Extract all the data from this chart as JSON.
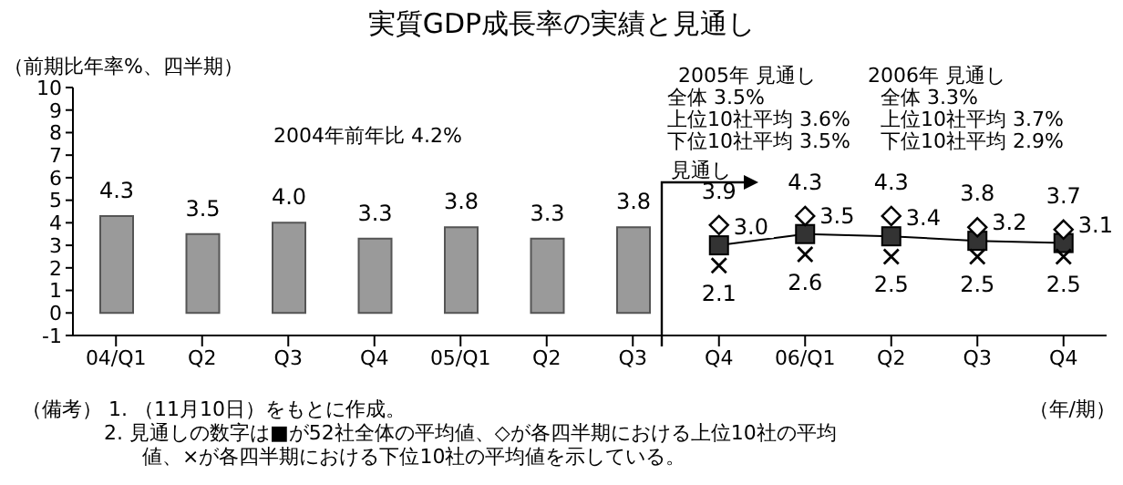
{
  "chart_data": {
    "type": "bar",
    "title": "実質GDP成長率の実績と見通し",
    "ylabel": "（前期比年率%、四半期）",
    "xlabel": "（年/期）",
    "categories": [
      "04/Q1",
      "Q2",
      "Q3",
      "Q4",
      "05/Q1",
      "Q2",
      "Q3",
      "Q4",
      "06/Q1",
      "Q2",
      "Q3",
      "Q4"
    ],
    "series": [
      {
        "color": "#9a9a9a",
        "values": [
          4.3,
          3.5,
          4.0,
          3.3,
          3.8,
          3.3,
          3.8,
          null,
          null,
          null,
          null,
          null
        ],
        "value_labels": [
          "4.3",
          "3.5",
          "4.0",
          "3.3",
          "3.8",
          "3.3",
          "3.8",
          null,
          null,
          null,
          null,
          null
        ]
      },
      {
        "type": "line",
        "color": "#000000",
        "marker": "square",
        "values": [
          null,
          null,
          null,
          null,
          null,
          null,
          null,
          3.0,
          3.5,
          3.4,
          3.2,
          3.1
        ],
        "value_labels": [
          null,
          null,
          null,
          null,
          null,
          null,
          null,
          "3.0",
          "3.5",
          "3.4",
          "3.2",
          "3.1"
        ]
      },
      {
        "type": "scatter",
        "color": "#000000",
        "marker": "diamond",
        "values": [
          null,
          null,
          null,
          null,
          null,
          null,
          null,
          3.9,
          4.3,
          4.3,
          3.8,
          3.7
        ],
        "value_labels": [
          null,
          null,
          null,
          null,
          null,
          null,
          null,
          "3.9",
          "4.3",
          "4.3",
          "3.8",
          "3.7"
        ]
      },
      {
        "type": "scatter",
        "color": "#000000",
        "marker": "cross",
        "values": [
          null,
          null,
          null,
          null,
          null,
          null,
          null,
          2.1,
          2.6,
          2.5,
          2.5,
          2.5
        ],
        "value_labels": [
          null,
          null,
          null,
          null,
          null,
          null,
          null,
          "2.1",
          "2.6",
          "2.5",
          "2.5",
          "2.5"
        ]
      }
    ],
    "ylim": [
      -1,
      10
    ],
    "yticks": [
      -1,
      0,
      1,
      2,
      3,
      4,
      5,
      6,
      7,
      8,
      9,
      10
    ],
    "grid": false,
    "legend": false,
    "annotations": [
      "2004年前年比 4.2%",
      "2005年 見通し",
      "全体 3.5%",
      "上位10社平均 3.6%",
      "下位10社平均 3.5%",
      "2006年 見通し",
      "全体 3.3%",
      "上位10社平均 3.7%",
      "下位10社平均 2.9%",
      "見通し",
      "（備考） 1. （11月10日）をもとに作成。",
      "2. 見通しの数字は■が52社全体の平均値、◇が各四半期における上位10社の平均",
      "値、×が各四半期における下位10社の平均値を示している。"
    ]
  }
}
